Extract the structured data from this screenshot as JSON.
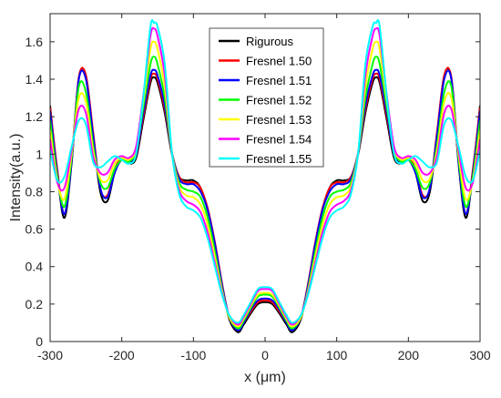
{
  "chart_data": {
    "type": "line",
    "xlabel": "x (μm)",
    "ylabel": "Intensity(a.u.)",
    "xlim": [
      -300,
      300
    ],
    "ylim": [
      0,
      1.75
    ],
    "xticks": [
      -300,
      -200,
      -100,
      0,
      100,
      200,
      300
    ],
    "xtick_labels": [
      "-300",
      "-200",
      "-100",
      "0",
      "100",
      "200",
      "300"
    ],
    "yticks": [
      0,
      0.2,
      0.4,
      0.6,
      0.8,
      1,
      1.2,
      1.4,
      1.6
    ],
    "ytick_labels": [
      "0",
      "0.2",
      "0.4",
      "0.6",
      "0.8",
      "1",
      "1.2",
      "1.4",
      "1.6"
    ],
    "legend_position": "top-center",
    "symmetric_about_x0": true,
    "x": [
      0,
      10,
      20,
      30,
      38,
      50,
      60,
      70,
      80,
      90,
      100,
      110,
      120,
      130,
      140,
      150,
      155,
      160,
      170,
      180,
      190,
      200,
      210,
      220,
      230,
      240,
      250,
      260,
      270,
      280,
      290,
      300
    ],
    "series": [
      {
        "name": "Rigurous",
        "color": "#000000",
        "y": [
          0.21,
          0.2,
          0.15,
          0.09,
          0.05,
          0.12,
          0.3,
          0.52,
          0.7,
          0.82,
          0.86,
          0.86,
          0.88,
          1.0,
          1.22,
          1.38,
          1.41,
          1.38,
          1.18,
          0.98,
          0.95,
          0.97,
          0.9,
          0.75,
          0.8,
          1.1,
          1.42,
          1.4,
          0.95,
          0.66,
          0.9,
          1.26
        ]
      },
      {
        "name": "Fresnel 1.50",
        "color": "#ff0000",
        "y": [
          0.22,
          0.21,
          0.16,
          0.1,
          0.06,
          0.13,
          0.31,
          0.53,
          0.71,
          0.82,
          0.85,
          0.85,
          0.88,
          1.01,
          1.24,
          1.4,
          1.43,
          1.4,
          1.2,
          1.0,
          0.96,
          0.98,
          0.92,
          0.78,
          0.82,
          1.12,
          1.42,
          1.41,
          0.97,
          0.68,
          0.92,
          1.25
        ]
      },
      {
        "name": "Fresnel 1.51",
        "color": "#0000ff",
        "y": [
          0.23,
          0.22,
          0.17,
          0.1,
          0.06,
          0.13,
          0.3,
          0.52,
          0.7,
          0.8,
          0.84,
          0.84,
          0.87,
          1.01,
          1.26,
          1.42,
          1.45,
          1.42,
          1.22,
          1.0,
          0.95,
          0.97,
          0.9,
          0.77,
          0.82,
          1.1,
          1.4,
          1.4,
          0.96,
          0.68,
          0.9,
          1.23
        ]
      },
      {
        "name": "Fresnel 1.52",
        "color": "#00ff00",
        "y": [
          0.25,
          0.24,
          0.18,
          0.11,
          0.07,
          0.13,
          0.28,
          0.48,
          0.66,
          0.77,
          0.8,
          0.81,
          0.85,
          1.01,
          1.3,
          1.48,
          1.52,
          1.48,
          1.25,
          1.02,
          0.96,
          0.97,
          0.92,
          0.82,
          0.85,
          1.05,
          1.33,
          1.36,
          0.98,
          0.72,
          0.88,
          1.18
        ]
      },
      {
        "name": "Fresnel 1.53",
        "color": "#ffff00",
        "y": [
          0.26,
          0.25,
          0.19,
          0.12,
          0.08,
          0.13,
          0.27,
          0.45,
          0.62,
          0.73,
          0.77,
          0.78,
          0.83,
          1.01,
          1.36,
          1.56,
          1.6,
          1.56,
          1.28,
          1.03,
          0.97,
          0.98,
          0.95,
          0.86,
          0.87,
          1.02,
          1.28,
          1.3,
          1.0,
          0.76,
          0.86,
          1.13
        ]
      },
      {
        "name": "Fresnel 1.54",
        "color": "#ff00ff",
        "y": [
          0.28,
          0.27,
          0.2,
          0.13,
          0.09,
          0.14,
          0.26,
          0.42,
          0.58,
          0.69,
          0.73,
          0.75,
          0.81,
          1.01,
          1.42,
          1.63,
          1.67,
          1.63,
          1.31,
          1.04,
          0.98,
          0.99,
          0.97,
          0.9,
          0.9,
          0.99,
          1.22,
          1.24,
          1.02,
          0.82,
          0.85,
          1.08
        ]
      },
      {
        "name": "Fresnel 1.55",
        "color": "#00ffff",
        "y": [
          0.29,
          0.28,
          0.21,
          0.14,
          0.1,
          0.14,
          0.25,
          0.4,
          0.55,
          0.66,
          0.7,
          0.72,
          0.79,
          1.01,
          1.48,
          1.68,
          1.7,
          1.68,
          1.3,
          1.0,
          0.95,
          0.97,
          0.99,
          0.96,
          0.93,
          0.96,
          1.16,
          1.18,
          1.04,
          0.88,
          0.86,
          1.02
        ]
      }
    ]
  }
}
